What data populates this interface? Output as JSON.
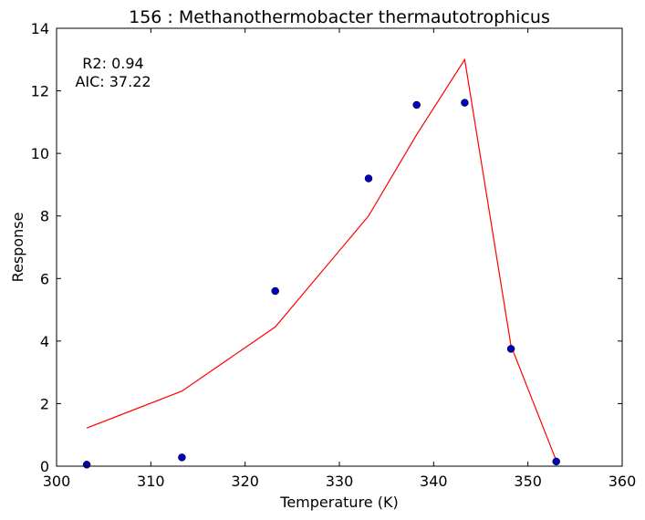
{
  "chart_data": {
    "type": "scatter",
    "title": "156 : Methanothermobacter thermautotrophicus",
    "xlabel": "Temperature (K)",
    "ylabel": "Response",
    "xlim": [
      300,
      360
    ],
    "ylim": [
      0,
      14
    ],
    "xticks": [
      300,
      310,
      320,
      330,
      340,
      350,
      360
    ],
    "yticks": [
      0,
      2,
      4,
      6,
      8,
      10,
      12,
      14
    ],
    "grid": false,
    "annotations": [
      "R2: 0.94",
      "AIC: 37.22"
    ],
    "series": [
      {
        "kind": "scatter",
        "color": "#0000bf",
        "x": [
          303.2,
          313.3,
          323.2,
          333.1,
          338.2,
          343.3,
          348.2,
          353.0
        ],
        "y": [
          0.05,
          0.28,
          5.6,
          9.2,
          11.55,
          11.62,
          3.75,
          0.15
        ]
      },
      {
        "kind": "line",
        "color": "#ff0000",
        "x": [
          303.2,
          313.3,
          323.2,
          333.1,
          338.2,
          343.3,
          348.2,
          353.0
        ],
        "y": [
          1.22,
          2.4,
          4.45,
          8.0,
          10.6,
          13.0,
          3.85,
          0.18
        ]
      }
    ]
  }
}
